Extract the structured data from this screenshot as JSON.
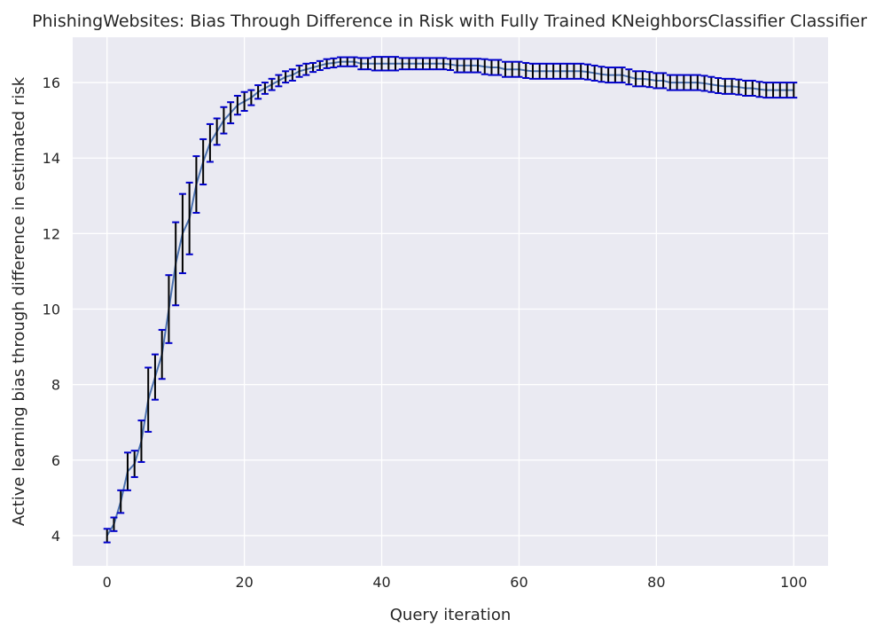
{
  "chart_data": {
    "type": "line",
    "title": "PhishingWebsites: Bias Through Difference in Risk with Fully Trained KNeighborsClassifier Classifier",
    "xlabel": "Query iteration",
    "ylabel": "Active learning bias through difference in estimated risk",
    "xlim": [
      -5,
      105
    ],
    "ylim": [
      3.2,
      17.2
    ],
    "xticks": [
      0,
      20,
      40,
      60,
      80,
      100
    ],
    "yticks": [
      4,
      6,
      8,
      10,
      12,
      14,
      16
    ],
    "grid": true,
    "colors": {
      "background": "#eaeaf2",
      "line": "#4c72b0",
      "error_bar": "#000000",
      "cap": "#0000cc"
    },
    "series": [
      {
        "x": [
          0,
          1,
          2,
          3,
          4,
          5,
          6,
          7,
          8,
          9,
          10,
          11,
          12,
          13,
          14,
          15,
          16,
          17,
          18,
          19,
          20,
          21,
          22,
          23,
          24,
          25,
          26,
          27,
          28,
          29,
          30,
          31,
          32,
          33,
          34,
          35,
          36,
          37,
          38,
          39,
          40,
          41,
          42,
          43,
          44,
          45,
          46,
          47,
          48,
          49,
          50,
          51,
          52,
          53,
          54,
          55,
          56,
          57,
          58,
          59,
          60,
          61,
          62,
          63,
          64,
          65,
          66,
          67,
          68,
          69,
          70,
          71,
          72,
          73,
          74,
          75,
          76,
          77,
          78,
          79,
          80,
          81,
          82,
          83,
          84,
          85,
          86,
          87,
          88,
          89,
          90,
          91,
          92,
          93,
          94,
          95,
          96,
          97,
          98,
          99,
          100
        ],
        "y": [
          4.0,
          4.3,
          4.9,
          5.7,
          5.9,
          6.5,
          7.6,
          8.2,
          8.8,
          10.0,
          11.2,
          12.0,
          12.4,
          13.3,
          13.9,
          14.4,
          14.7,
          15.0,
          15.2,
          15.4,
          15.5,
          15.6,
          15.75,
          15.85,
          15.95,
          16.05,
          16.15,
          16.2,
          16.3,
          16.35,
          16.4,
          16.45,
          16.5,
          16.52,
          16.55,
          16.55,
          16.55,
          16.5,
          16.5,
          16.5,
          16.5,
          16.5,
          16.5,
          16.5,
          16.5,
          16.5,
          16.5,
          16.5,
          16.5,
          16.5,
          16.48,
          16.45,
          16.45,
          16.45,
          16.45,
          16.42,
          16.4,
          16.4,
          16.35,
          16.35,
          16.35,
          16.32,
          16.3,
          16.3,
          16.3,
          16.3,
          16.3,
          16.3,
          16.3,
          16.3,
          16.28,
          16.25,
          16.22,
          16.2,
          16.2,
          16.2,
          16.15,
          16.1,
          16.1,
          16.08,
          16.05,
          16.05,
          16.0,
          16.0,
          16.0,
          16.0,
          16.0,
          15.98,
          15.95,
          15.92,
          15.9,
          15.9,
          15.88,
          15.85,
          15.85,
          15.82,
          15.8,
          15.8,
          15.8,
          15.8,
          15.8
        ],
        "err": [
          0.18,
          0.18,
          0.3,
          0.5,
          0.35,
          0.55,
          0.85,
          0.6,
          0.65,
          0.9,
          1.1,
          1.05,
          0.95,
          0.75,
          0.6,
          0.5,
          0.35,
          0.35,
          0.28,
          0.25,
          0.25,
          0.2,
          0.18,
          0.15,
          0.15,
          0.15,
          0.15,
          0.15,
          0.15,
          0.15,
          0.12,
          0.12,
          0.12,
          0.12,
          0.12,
          0.12,
          0.12,
          0.15,
          0.15,
          0.18,
          0.18,
          0.18,
          0.18,
          0.15,
          0.15,
          0.15,
          0.15,
          0.15,
          0.15,
          0.15,
          0.15,
          0.18,
          0.18,
          0.18,
          0.18,
          0.2,
          0.2,
          0.2,
          0.2,
          0.2,
          0.2,
          0.2,
          0.2,
          0.2,
          0.2,
          0.2,
          0.2,
          0.2,
          0.2,
          0.2,
          0.2,
          0.2,
          0.2,
          0.2,
          0.2,
          0.2,
          0.2,
          0.2,
          0.2,
          0.2,
          0.2,
          0.2,
          0.2,
          0.2,
          0.2,
          0.2,
          0.2,
          0.2,
          0.2,
          0.2,
          0.2,
          0.2,
          0.2,
          0.2,
          0.2,
          0.2,
          0.2,
          0.2,
          0.2,
          0.2,
          0.2
        ]
      }
    ]
  }
}
